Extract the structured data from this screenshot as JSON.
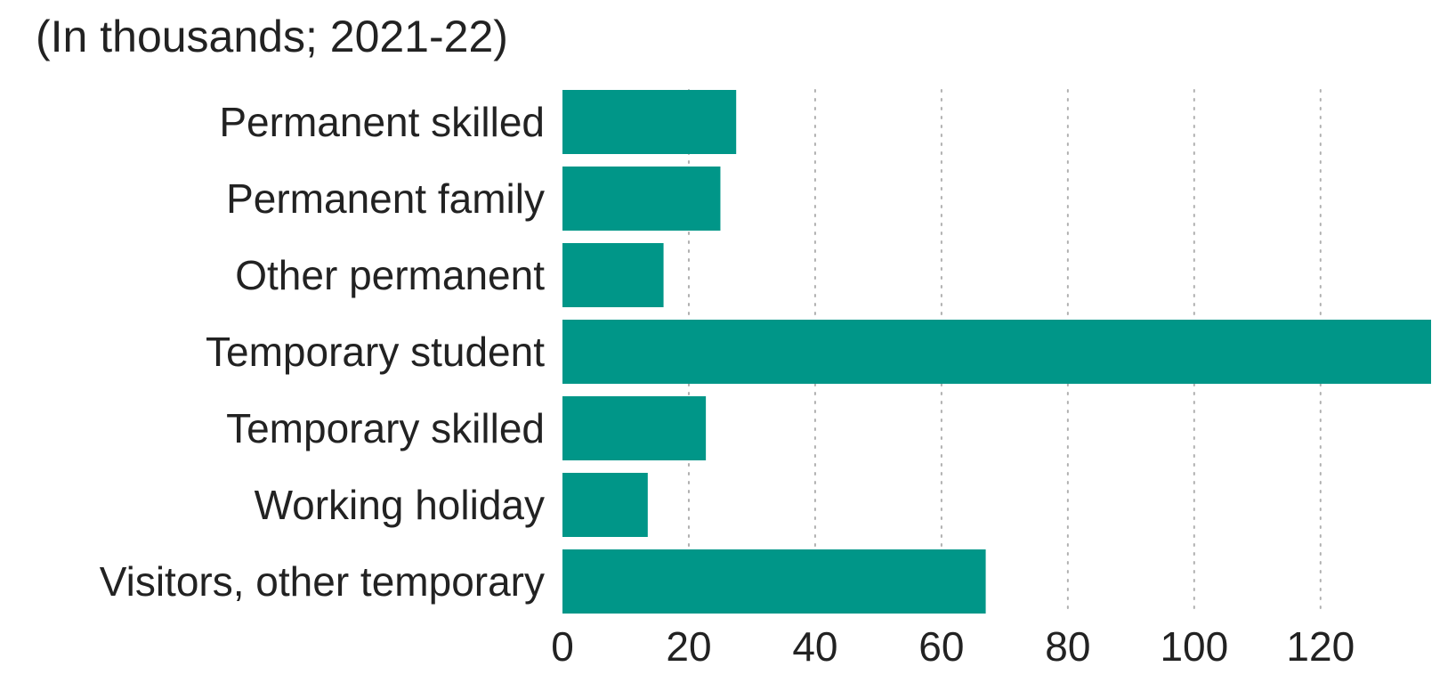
{
  "chart_data": {
    "type": "bar",
    "orientation": "horizontal",
    "title": "",
    "subtitle": "(In thousands; 2021-22)",
    "xlabel": "",
    "ylabel": "",
    "categories": [
      "Permanent skilled",
      "Permanent family",
      "Other permanent",
      "Temporary student",
      "Temporary skilled",
      "Working holiday",
      "Visitors, other temporary"
    ],
    "values": [
      27.5,
      25,
      16,
      137.5,
      22.7,
      13.5,
      67
    ],
    "xlim": [
      0,
      137.5
    ],
    "xticks": [
      0,
      20,
      40,
      60,
      80,
      100,
      120
    ],
    "grid": "vertical dotted",
    "legend": "none",
    "bar_color": "#009688"
  }
}
